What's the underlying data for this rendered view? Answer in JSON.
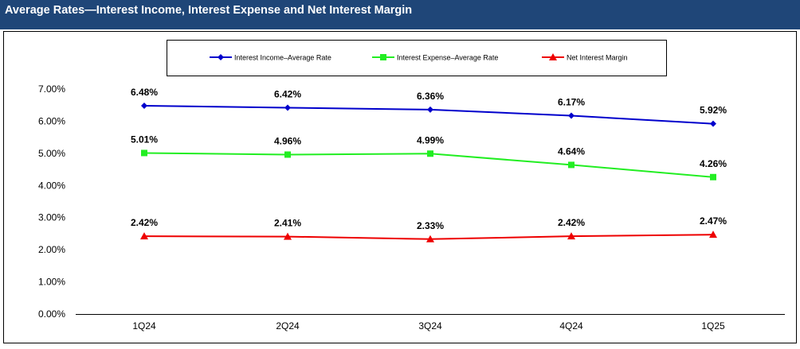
{
  "header": {
    "title": "Average Rates—Interest Income, Interest Expense and Net Interest Margin"
  },
  "chart_data": {
    "type": "line",
    "categories": [
      "1Q24",
      "2Q24",
      "3Q24",
      "4Q24",
      "1Q25"
    ],
    "ylim": [
      0,
      7
    ],
    "yticks": [
      "0.00%",
      "1.00%",
      "2.00%",
      "3.00%",
      "4.00%",
      "5.00%",
      "6.00%",
      "7.00%"
    ],
    "legend_position": "top",
    "grid": false,
    "series": [
      {
        "name": "Interest Income–Average Rate",
        "color": "#0000cc",
        "marker": "diamond",
        "values": [
          6.48,
          6.42,
          6.36,
          6.17,
          5.92
        ],
        "labels": [
          "6.48%",
          "6.42%",
          "6.36%",
          "6.17%",
          "5.92%"
        ]
      },
      {
        "name": "Interest Expense–Average Rate",
        "color": "#22ee22",
        "marker": "square",
        "values": [
          5.01,
          4.96,
          4.99,
          4.64,
          4.26
        ],
        "labels": [
          "5.01%",
          "4.96%",
          "4.99%",
          "4.64%",
          "4.26%"
        ]
      },
      {
        "name": "Net Interest Margin",
        "color": "#ee0000",
        "marker": "triangle",
        "values": [
          2.42,
          2.41,
          2.33,
          2.42,
          2.47
        ],
        "labels": [
          "2.42%",
          "2.41%",
          "2.33%",
          "2.42%",
          "2.47%"
        ]
      }
    ]
  }
}
